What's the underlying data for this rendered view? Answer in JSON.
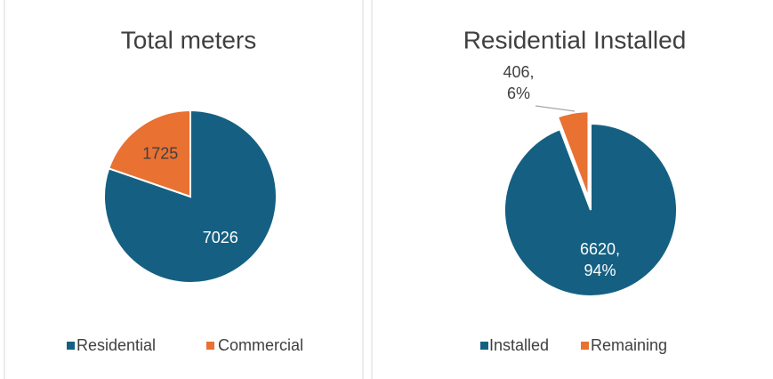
{
  "chart_data": [
    {
      "type": "pie",
      "title": "Total meters",
      "categories": [
        "Residential",
        "Commercial"
      ],
      "values": [
        7026,
        1725
      ],
      "colors": [
        "#156082",
        "#e97132"
      ],
      "legend": "bottom"
    },
    {
      "type": "pie",
      "title": "Residential Installed",
      "categories": [
        "Installed",
        "Remaining"
      ],
      "values": [
        6620,
        406
      ],
      "value_labels": [
        [
          "6620,",
          "94%"
        ],
        [
          "406,",
          "6%"
        ]
      ],
      "colors": [
        "#156082",
        "#e97132"
      ],
      "legend": "bottom"
    }
  ]
}
